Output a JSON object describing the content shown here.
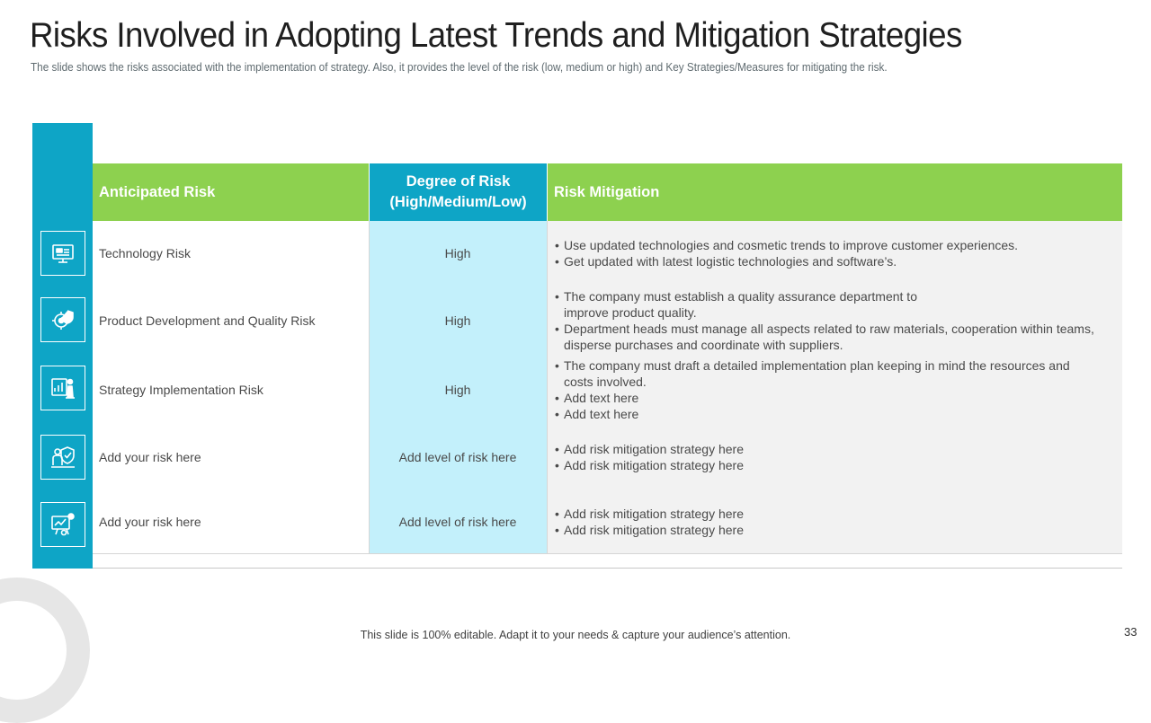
{
  "slide": {
    "title": "Risks Involved in Adopting Latest Trends and Mitigation Strategies",
    "subtitle": "The slide shows the risks associated with the implementation of strategy. Also, it provides the level of the risk (low, medium or high) and Key Strategies/Measures for mitigating the risk.",
    "footer": "This slide is 100% editable. Adapt it to your needs & capture your audience’s attention.",
    "page_number": "33"
  },
  "colors": {
    "teal": "#0ea5c6",
    "green": "#8dd14f",
    "light_cyan": "#c3f0fb",
    "light_gray": "#f2f2f2"
  },
  "table": {
    "headers": {
      "risk": "Anticipated Risk",
      "degree": "Degree of Risk\n(High/Medium/Low)",
      "mitigation": "Risk Mitigation"
    },
    "rows": [
      {
        "icon": "technology-monitor-icon",
        "risk": "Technology Risk",
        "degree": "High",
        "mitigation": [
          "Use updated technologies and cosmetic trends to improve customer experiences.",
          "Get updated with latest logistic technologies and software’s."
        ]
      },
      {
        "icon": "quality-gear-shield-icon",
        "risk": "Product Development and Quality Risk",
        "degree": "High",
        "mitigation": [
          "The company must establish a quality assurance department to improve product quality.",
          "Department heads must manage all aspects related to raw materials, cooperation within teams, disperse purchases and coordinate with suppliers."
        ]
      },
      {
        "icon": "strategy-chess-chart-icon",
        "risk": "Strategy Implementation Risk",
        "degree": "High",
        "mitigation": [
          "The company must draft a detailed implementation plan keeping in mind the resources and costs involved.",
          "Add text here",
          "Add text here"
        ]
      },
      {
        "icon": "person-shield-icon",
        "risk": "Add your risk here",
        "degree": "Add level of risk here",
        "mitigation": [
          "Add risk mitigation strategy here",
          "Add risk mitigation strategy here"
        ]
      },
      {
        "icon": "analytics-board-icon",
        "risk": "Add your risk here",
        "degree": "Add level of risk here",
        "mitigation": [
          "Add risk mitigation strategy here",
          "Add risk mitigation strategy here"
        ]
      }
    ]
  }
}
